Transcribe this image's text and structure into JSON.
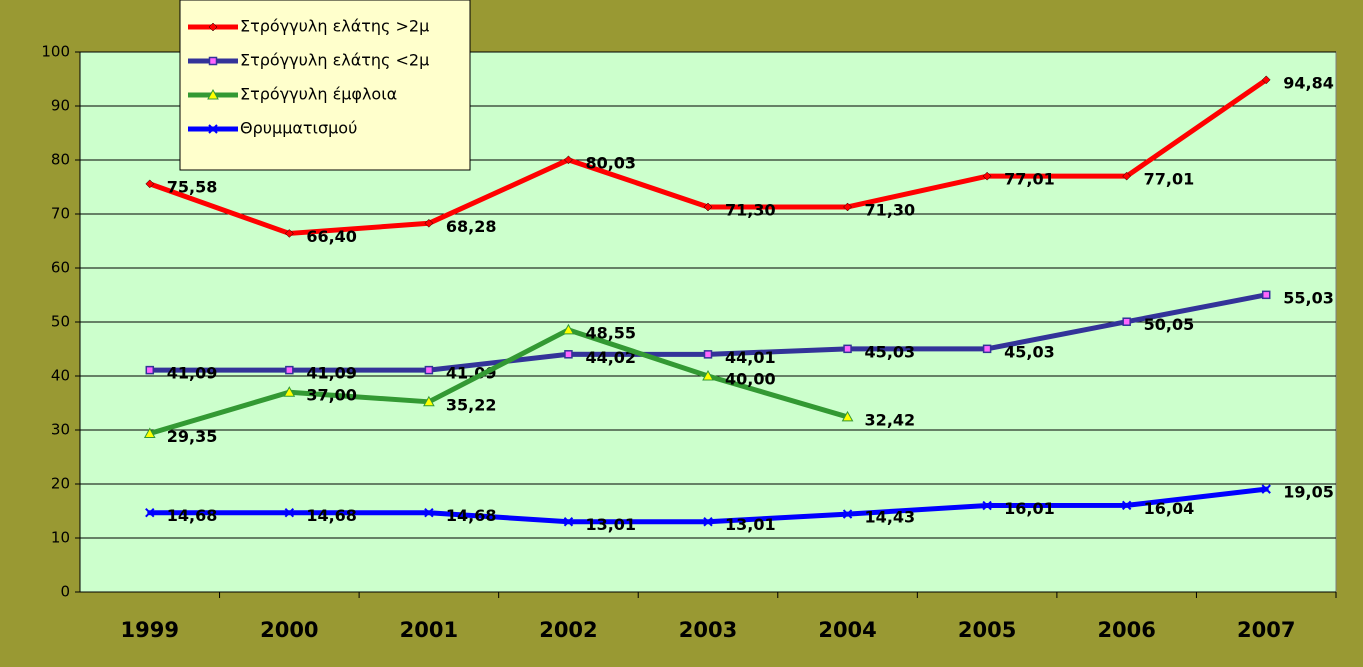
{
  "chart_data": {
    "type": "line",
    "categories": [
      "1999",
      "2000",
      "2001",
      "2002",
      "2003",
      "2004",
      "2005",
      "2006",
      "2007"
    ],
    "ylim": [
      0,
      100
    ],
    "yticks": [
      0,
      10,
      20,
      30,
      40,
      50,
      60,
      70,
      80,
      90,
      100
    ],
    "grid": true,
    "legend": "top-left",
    "series": [
      {
        "name": "Στρόγγυλη ελάτης >2μ",
        "color": "#ff0000",
        "marker": "diamond",
        "values": [
          75.58,
          66.4,
          68.28,
          80.03,
          71.3,
          71.3,
          77.01,
          77.01,
          94.84
        ],
        "value_labels": [
          "75,58",
          "66,40",
          "68,28",
          "80,03",
          "71,30",
          "71,30",
          "77,01",
          "77,01",
          "94,84"
        ]
      },
      {
        "name": "Στρόγγυλη ελάτης <2μ",
        "color": "#333399",
        "marker": "square",
        "values": [
          41.09,
          41.09,
          41.09,
          44.02,
          44.01,
          45.03,
          45.03,
          50.05,
          55.03
        ],
        "value_labels": [
          "41,09",
          "41,09",
          "41,09",
          "44,02",
          "44,01",
          "45,03",
          "45,03",
          "50,05",
          "55,03"
        ]
      },
      {
        "name": "Στρόγγυλη έμφλοια",
        "color": "#339933",
        "marker": "triangle",
        "values": [
          29.35,
          37.0,
          35.22,
          48.55,
          40.0,
          32.42,
          null,
          null,
          null
        ],
        "value_labels": [
          "29,35",
          "37,00",
          "35,22",
          "48,55",
          "40,00",
          "32,42",
          null,
          null,
          null
        ]
      },
      {
        "name": "Θρυμματισμού",
        "color": "#0000ff",
        "marker": "x",
        "values": [
          14.68,
          14.68,
          14.68,
          13.01,
          13.01,
          14.43,
          16.01,
          16.04,
          19.05
        ],
        "value_labels": [
          "14,68",
          "14,68",
          "14,68",
          "13,01",
          "13,01",
          "14,43",
          "16,01",
          "16,04",
          "19,05"
        ]
      }
    ]
  }
}
